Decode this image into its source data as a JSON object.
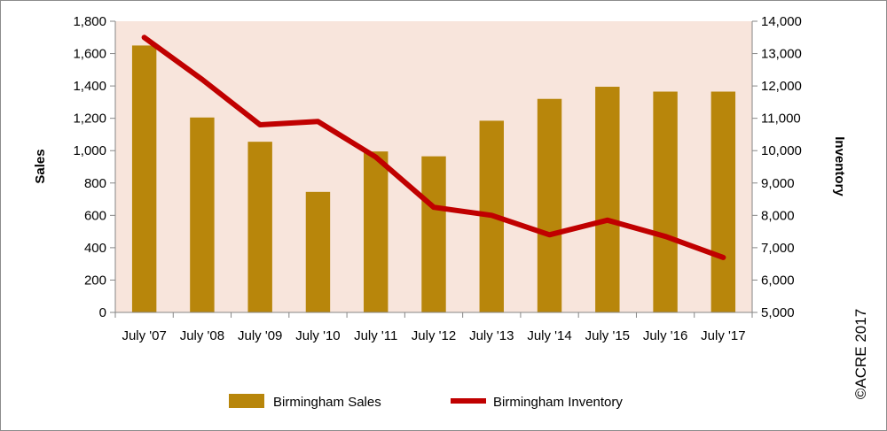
{
  "chart_data": {
    "type": "bar",
    "categories": [
      "July '07",
      "July '08",
      "July '09",
      "July '10",
      "July '11",
      "July '12",
      "July '13",
      "July '14",
      "July '15",
      "July '16",
      "July '17"
    ],
    "series": [
      {
        "name": "Birmingham Sales",
        "type": "bar",
        "axis": "left",
        "color": "#b8860b",
        "values": [
          1650,
          1205,
          1055,
          745,
          995,
          965,
          1185,
          1320,
          1395,
          1365,
          1365
        ]
      },
      {
        "name": "Birmingham Inventory",
        "type": "line",
        "axis": "right",
        "color": "#c00000",
        "values": [
          13500,
          12200,
          10800,
          10900,
          9800,
          8250,
          8000,
          7400,
          7850,
          7350,
          6700
        ]
      }
    ],
    "ylabel": "Sales",
    "y2label": "Inventory",
    "ylim": [
      0,
      1800
    ],
    "y2lim": [
      5000,
      14000
    ],
    "yticks": [
      "0",
      "200",
      "400",
      "600",
      "800",
      "1,000",
      "1,200",
      "1,400",
      "1,600",
      "1,800"
    ],
    "y2ticks": [
      "5,000",
      "6,000",
      "7,000",
      "8,000",
      "9,000",
      "10,000",
      "11,000",
      "12,000",
      "13,000",
      "14,000"
    ],
    "plot_background": "#f8e5dc",
    "grid": false,
    "legend_position": "bottom"
  },
  "copyright": "©ACRE 2017"
}
